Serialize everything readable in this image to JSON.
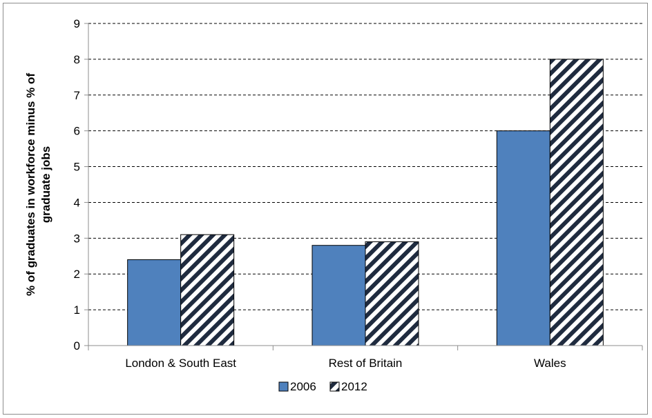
{
  "chart_data": {
    "type": "bar",
    "title": "",
    "xlabel": "",
    "ylabel": "% of graduates in workforce minus % of graduate jobs",
    "ylabel_lines": [
      "% of graduates in workforce minus % of",
      "graduate jobs"
    ],
    "categories": [
      "London & South  East",
      "Rest of Britain",
      "Wales"
    ],
    "series": [
      {
        "name": "2006",
        "values": [
          2.4,
          2.8,
          6.0
        ],
        "fill": "#4f81bd",
        "pattern": "solid"
      },
      {
        "name": "2012",
        "values": [
          3.1,
          2.9,
          8.0
        ],
        "fill": "#1f2b3f",
        "pattern": "diagonal-stripes"
      }
    ],
    "ylim": [
      0,
      9
    ],
    "yticks": [
      0,
      1,
      2,
      3,
      4,
      5,
      6,
      7,
      8,
      9
    ],
    "grid": "horizontal-dashed",
    "legend_position": "bottom-center"
  }
}
